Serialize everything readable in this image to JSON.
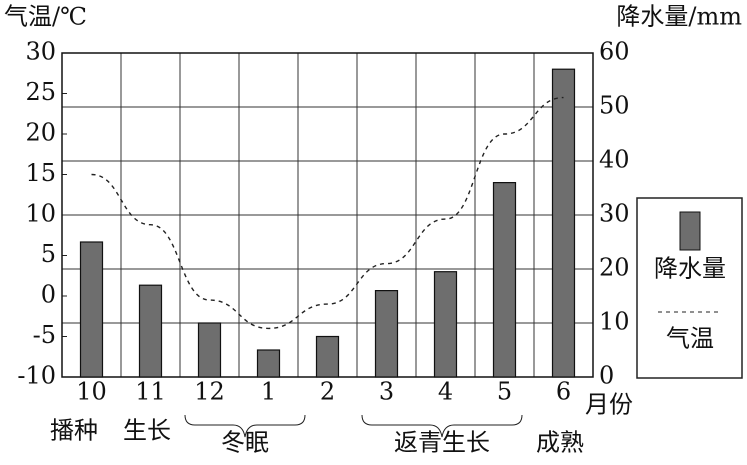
{
  "chart_data": {
    "type": "bar-line",
    "ylabel": "气温/℃",
    "y2label": "降水量/mm",
    "xlabel": "月份",
    "categories": [
      "10",
      "11",
      "12",
      "1",
      "2",
      "3",
      "4",
      "5",
      "6"
    ],
    "series": [
      {
        "name": "降水量",
        "type": "bar",
        "axis": "y2",
        "color": "#6e6e6e",
        "values": [
          25,
          17,
          10,
          5,
          7.5,
          16,
          19.5,
          36,
          57
        ]
      },
      {
        "name": "气温",
        "type": "line",
        "axis": "y",
        "color": "#222222",
        "line_style": "dashed",
        "values": [
          15,
          8.8,
          -0.5,
          -4,
          -1,
          4,
          9.5,
          20,
          24.5
        ]
      }
    ],
    "ylim": [
      -10,
      30
    ],
    "yticks": [
      -10,
      -5,
      0,
      5,
      10,
      15,
      20,
      25,
      30
    ],
    "y2lim": [
      0,
      60
    ],
    "y2ticks": [
      0,
      10,
      20,
      30,
      40,
      50,
      60
    ],
    "grid": true,
    "legend": "right",
    "stage_labels": [
      "播种",
      "生长",
      "冬眠",
      "返青生长",
      "成熟"
    ]
  }
}
